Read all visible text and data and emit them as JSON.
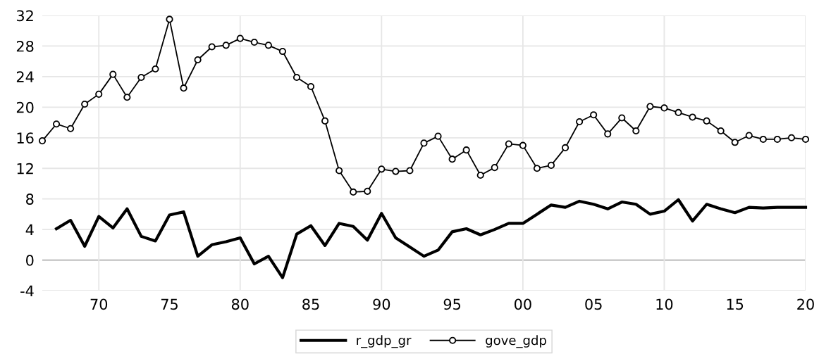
{
  "chart_data": {
    "type": "line",
    "x": [
      1966,
      1967,
      1968,
      1969,
      1970,
      1971,
      1972,
      1973,
      1974,
      1975,
      1976,
      1977,
      1978,
      1979,
      1980,
      1981,
      1982,
      1983,
      1984,
      1985,
      1986,
      1987,
      1988,
      1989,
      1990,
      1991,
      1992,
      1993,
      1994,
      1995,
      1996,
      1997,
      1998,
      1999,
      2000,
      2001,
      2002,
      2003,
      2004,
      2005,
      2006,
      2007,
      2008,
      2009,
      2010,
      2011,
      2012,
      2013,
      2014,
      2015,
      2016,
      2017,
      2018,
      2019,
      2020
    ],
    "series": [
      {
        "name": "r_gdp_gr",
        "color": "#000000",
        "marker": "none",
        "values": [
          null,
          4.1,
          5.2,
          1.8,
          5.7,
          4.2,
          6.7,
          3.1,
          2.5,
          5.9,
          6.3,
          0.5,
          2.0,
          2.4,
          2.9,
          -0.5,
          0.5,
          -2.3,
          3.4,
          4.5,
          1.9,
          4.8,
          4.4,
          2.6,
          6.1,
          2.9,
          1.7,
          0.5,
          1.3,
          3.7,
          4.1,
          3.3,
          4.0,
          4.8,
          4.8,
          6.0,
          7.2,
          6.9,
          7.7,
          7.3,
          6.7,
          7.6,
          7.3,
          6.0,
          6.4,
          7.9,
          5.1,
          7.3,
          6.7,
          6.2,
          6.9,
          6.8,
          6.9,
          6.9,
          6.9
        ]
      },
      {
        "name": "gove_gdp",
        "color": "#000000",
        "marker": "circle",
        "values": [
          15.6,
          17.8,
          17.2,
          20.4,
          21.7,
          24.3,
          21.3,
          23.9,
          25.0,
          31.5,
          22.5,
          26.2,
          27.9,
          28.1,
          29.0,
          28.5,
          28.1,
          27.3,
          23.9,
          22.7,
          18.2,
          11.7,
          8.9,
          9.0,
          11.9,
          11.6,
          11.7,
          15.3,
          16.2,
          13.2,
          14.4,
          11.1,
          12.1,
          15.2,
          15.0,
          12.0,
          12.4,
          14.7,
          18.1,
          19.0,
          16.5,
          18.6,
          16.9,
          20.1,
          19.9,
          19.3,
          18.7,
          18.2,
          16.9,
          15.4,
          16.3,
          15.8,
          15.8,
          16.0,
          15.8
        ]
      }
    ],
    "xlim": [
      1966,
      2020
    ],
    "xticks": [
      {
        "value": 1970,
        "label": "70"
      },
      {
        "value": 1975,
        "label": "75"
      },
      {
        "value": 1980,
        "label": "80"
      },
      {
        "value": 1985,
        "label": "85"
      },
      {
        "value": 1990,
        "label": "90"
      },
      {
        "value": 1995,
        "label": "95"
      },
      {
        "value": 2000,
        "label": "00"
      },
      {
        "value": 2005,
        "label": "05"
      },
      {
        "value": 2010,
        "label": "10"
      },
      {
        "value": 2015,
        "label": "15"
      },
      {
        "value": 2020,
        "label": "20"
      }
    ],
    "ylim": [
      -4,
      32
    ],
    "yticks": [
      -4,
      0,
      4,
      8,
      12,
      16,
      20,
      24,
      28,
      32
    ],
    "grid": true,
    "legend": "bottom",
    "line_style": "solid"
  }
}
